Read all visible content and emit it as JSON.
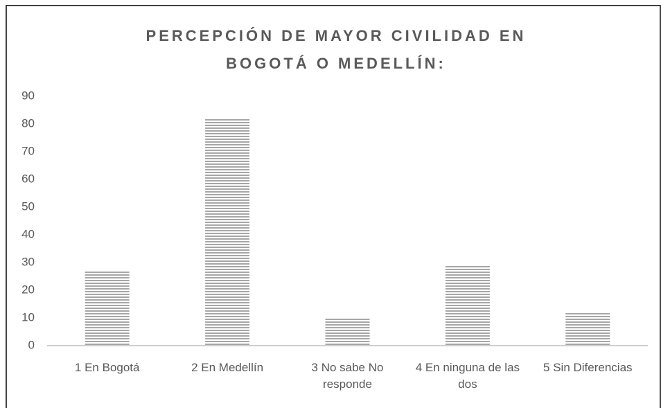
{
  "chart_data": {
    "type": "bar",
    "title": "PERCEPCIÓN DE MAYOR CIVILIDAD EN BOGOTÁ O MEDELLÍN:",
    "categories": [
      "1 En Bogotá",
      "2 En Medellín",
      "3 No sabe No responde",
      "4 En ninguna de las dos",
      "5 Sin Diferencias"
    ],
    "values": [
      27,
      82,
      10,
      29,
      12
    ],
    "color": "#a6a6a6",
    "ylim": [
      0,
      90
    ],
    "yticks": [
      0,
      10,
      20,
      30,
      40,
      50,
      60,
      70,
      80,
      90
    ],
    "grid": false
  }
}
